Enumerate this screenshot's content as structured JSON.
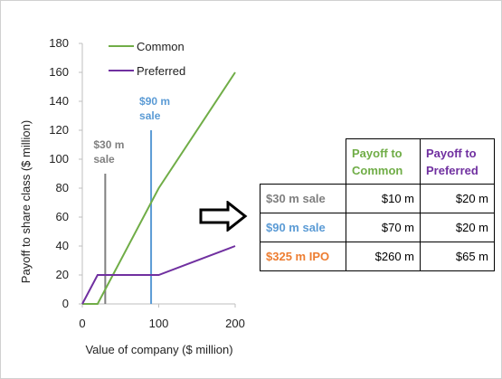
{
  "chart_data": {
    "type": "line",
    "xlabel": "Value of company ($ million)",
    "ylabel": "Payoff to share class ($ million)",
    "xlim": [
      0,
      200
    ],
    "ylim": [
      0,
      180
    ],
    "x_ticks": [
      0,
      100,
      200
    ],
    "y_ticks": [
      0,
      20,
      40,
      60,
      80,
      100,
      120,
      140,
      160,
      180
    ],
    "grid": false,
    "legend_position": "top-left",
    "series": [
      {
        "name": "Common",
        "color": "#70ad47",
        "x": [
          0,
          20,
          100,
          200
        ],
        "y": [
          0,
          0,
          80,
          160
        ]
      },
      {
        "name": "Preferred",
        "color": "#7030a0",
        "x": [
          0,
          20,
          100,
          140,
          200
        ],
        "y": [
          0,
          20,
          20,
          28,
          40
        ]
      }
    ],
    "annotations": [
      {
        "x": 30,
        "y_top": 90,
        "line1": "$30 m",
        "line2": "sale",
        "color": "#808080"
      },
      {
        "x": 90,
        "y_top": 120,
        "line1": "$90 m",
        "line2": "sale",
        "color": "#5b9bd5"
      }
    ]
  },
  "table": {
    "headers": [
      {
        "line1": "Payoff to",
        "line2": "Common",
        "color": "#70ad47"
      },
      {
        "line1": "Payoff to",
        "line2": "Preferred",
        "color": "#7030a0"
      }
    ],
    "rows": [
      {
        "label": "$30 m sale",
        "label_color": "#7f7f7f",
        "common": "$10 m",
        "preferred": "$20 m"
      },
      {
        "label": "$90 m sale",
        "label_color": "#5b9bd5",
        "common": "$70 m",
        "preferred": "$20 m"
      },
      {
        "label": "$325 m IPO",
        "label_color": "#ed7d31",
        "common": "$260 m",
        "preferred": "$65 m"
      }
    ]
  },
  "arrow_icon": "right-arrow-icon"
}
